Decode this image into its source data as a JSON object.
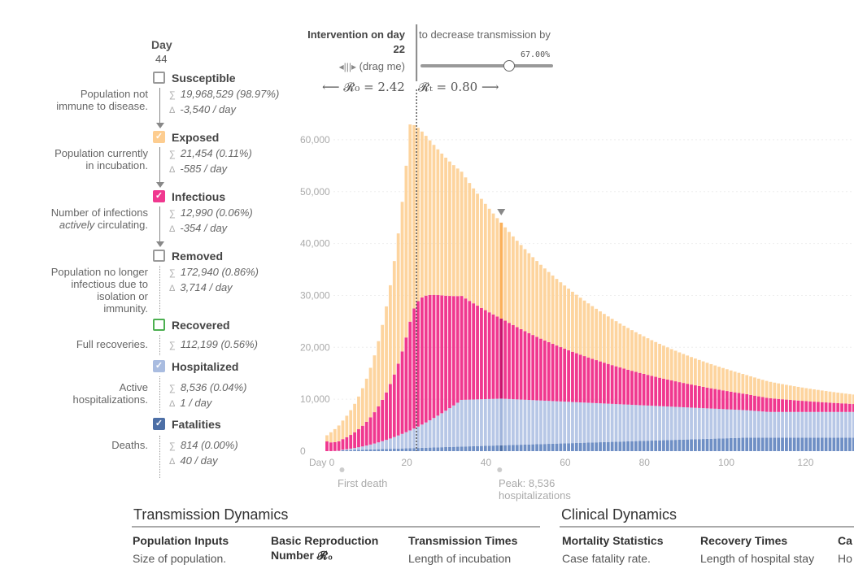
{
  "day": {
    "label": "Day",
    "value": "44"
  },
  "compartments": [
    {
      "key": "susceptible",
      "name": "Susceptible",
      "checked": false,
      "color": "#dddddd",
      "desc": "Population not immune to disease.",
      "total": "19,968,529 (98.97%)",
      "delta": "-3,540 / day"
    },
    {
      "key": "exposed",
      "name": "Exposed",
      "checked": true,
      "color": "#fdcd90",
      "desc": "Population currently in incubation.",
      "total": "21,454 (0.11%)",
      "delta": "-585 / day"
    },
    {
      "key": "infectious",
      "name": "Infectious",
      "checked": true,
      "color": "#f0388f",
      "desc_pre": "Number of infections ",
      "desc_em": "actively",
      "desc_post": " circulating.",
      "total": "12,990 (0.06%)",
      "delta": "-354 / day"
    },
    {
      "key": "removed",
      "name": "Removed",
      "checked": false,
      "color": "#777777",
      "desc": "Population no longer infectious due to isolation or immunity.",
      "total": "172,940 (0.86%)",
      "delta": "3,714 / day"
    },
    {
      "key": "recovered",
      "name": "Recovered",
      "checked": false,
      "color": "#4caf50",
      "desc": "Full recoveries.",
      "total": "112,199 (0.56%)",
      "delta": ""
    },
    {
      "key": "hospitalized",
      "name": "Hospitalized",
      "checked": true,
      "color": "#a9bce0",
      "desc": "Active hospitalizations.",
      "total": "8,536 (0.04%)",
      "delta": "1 / day"
    },
    {
      "key": "fatalities",
      "name": "Fatalities",
      "checked": true,
      "color": "#4d6fa6",
      "desc": "Deaths.",
      "total": "814 (0.00%)",
      "delta": "40 / day"
    }
  ],
  "symbols": {
    "sum": "∑",
    "delta": "Δ",
    "check": "✓"
  },
  "intervention": {
    "title": "Intervention on day",
    "day": "22",
    "drag": "(drag me)",
    "decrease_label": "to decrease transmission by",
    "percent": "67.00%",
    "percent_value": 0.67,
    "r0": "⟵ 𝓡₀ = 2.42",
    "rt": "𝓡ₜ = 0.80 ⟶"
  },
  "annotations": {
    "first_death": "First death",
    "peak": "Peak: 8,536 hospitalizations"
  },
  "chart_data": {
    "type": "bar",
    "stacked": true,
    "x_label_prefix": "Day",
    "xlim": [
      0,
      133
    ],
    "ylim": [
      0,
      65000
    ],
    "y_ticks": [
      0,
      10000,
      20000,
      30000,
      40000,
      50000,
      60000
    ],
    "y_tick_labels": [
      "0",
      "10,000",
      "20,000",
      "30,000",
      "40,000",
      "50,000",
      "60,000"
    ],
    "x_ticks": [
      0,
      20,
      40,
      60,
      80,
      100,
      120
    ],
    "x_tick_labels": [
      "0",
      "20",
      "40",
      "60",
      "80",
      "100",
      "120"
    ],
    "intervention_day": 22,
    "current_day": 44,
    "first_death_day": 4,
    "grid": true,
    "series_colors": {
      "fatalities": "#6f8fc5",
      "hospitalized": "#b7c7e6",
      "infectious": "#f0388f",
      "exposed": "#fdd49e"
    },
    "series_stack_order": [
      "fatalities",
      "hospitalized",
      "infectious",
      "exposed"
    ]
  },
  "bottom": {
    "sections": [
      {
        "title": "Transmission Dynamics",
        "columns": [
          {
            "head": "Population Inputs",
            "text": "Size of population."
          },
          {
            "head": "Basic Reproduction Number 𝓡₀",
            "text": ""
          },
          {
            "head": "Transmission Times",
            "text": "Length of incubation"
          }
        ]
      },
      {
        "title": "Clinical Dynamics",
        "columns": [
          {
            "head": "Mortality Statistics",
            "text": "Case fatality rate."
          },
          {
            "head": "Recovery Times",
            "text": "Length of hospital stay"
          },
          {
            "head": "Ca",
            "text": "Ho"
          }
        ]
      }
    ]
  }
}
